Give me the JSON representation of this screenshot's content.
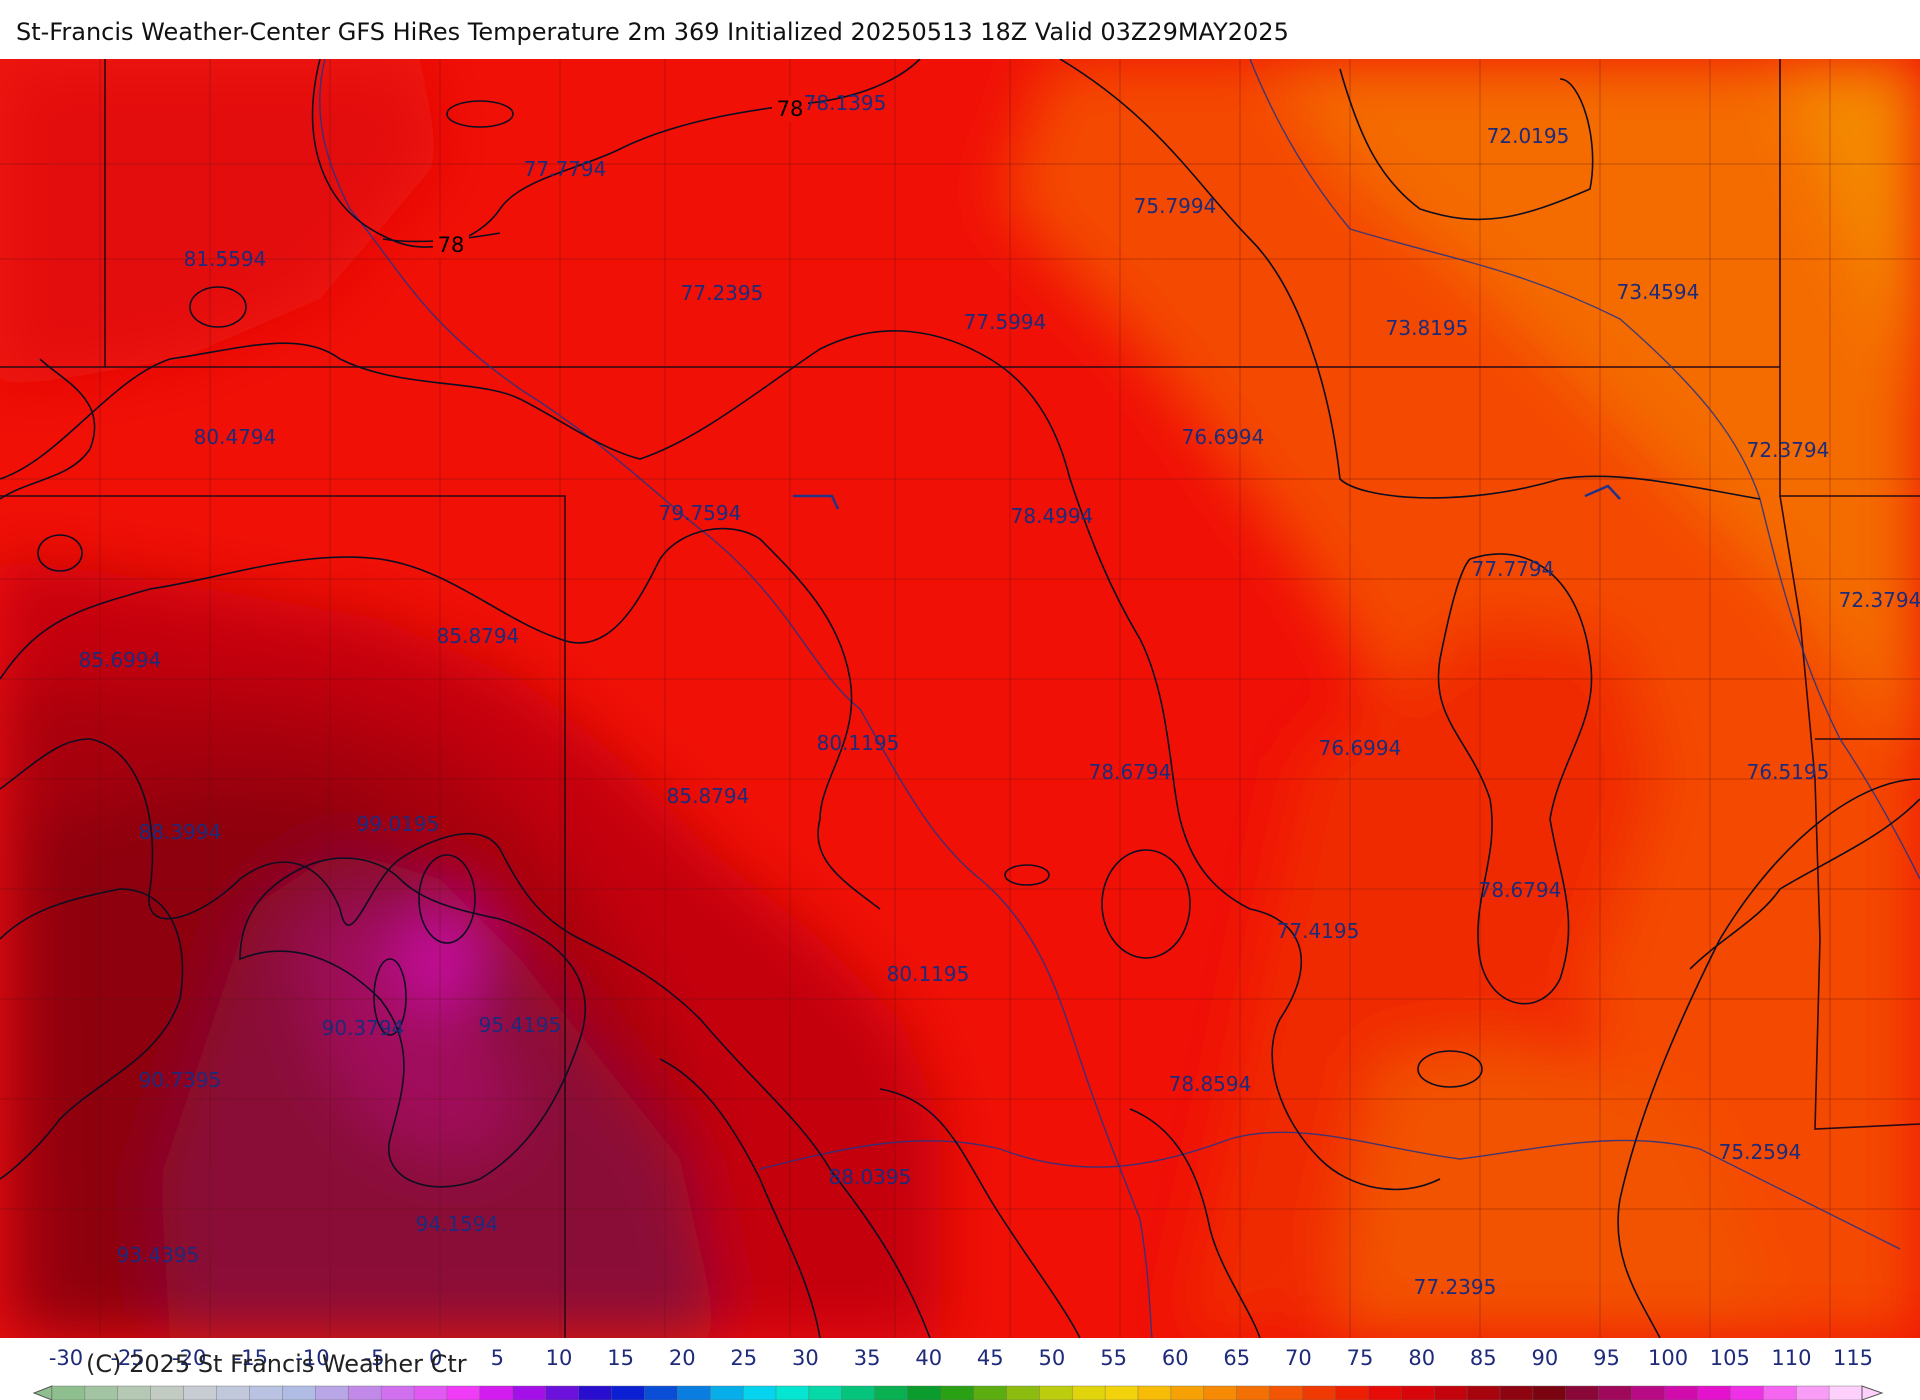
{
  "header": {
    "title": "St-Francis Weather-Center GFS HiRes Temperature 2m  369 Initialized 20250513 18Z Valid 03Z29MAY2025"
  },
  "map": {
    "field": "Temperature 2m",
    "contour_labels": [
      "78",
      "78"
    ],
    "point_values": [
      "78.1395",
      "77.7794",
      "75.7994",
      "72.0195",
      "81.5594",
      "77.2395",
      "77.5994",
      "73.8195",
      "73.4594",
      "80.4794",
      "76.6994",
      "72.3794",
      "79.7594",
      "78.4994",
      "77.7794",
      "72.3794",
      "85.6994",
      "85.8794",
      "80.1195",
      "78.6794",
      "76.6994",
      "76.5195",
      "88.3994",
      "99.0195",
      "85.8794",
      "78.6794",
      "77.4195",
      "80.1195",
      "90.3794",
      "95.4195",
      "90.7395",
      "78.8594",
      "75.2594",
      "88.0395",
      "94.1594",
      "93.4395",
      "77.2395"
    ]
  },
  "colorbar": {
    "ticks": [
      "-30",
      "-25",
      "-20",
      "-15",
      "-10",
      "-5",
      "0",
      "5",
      "10",
      "15",
      "20",
      "25",
      "30",
      "35",
      "40",
      "45",
      "50",
      "55",
      "60",
      "65",
      "70",
      "75",
      "80",
      "85",
      "90",
      "95",
      "100",
      "105",
      "110",
      "115"
    ],
    "colors": [
      "#8fbf8f",
      "#a3c4a3",
      "#b4c8b4",
      "#c2cbc2",
      "#c8cdd4",
      "#c2c8dc",
      "#b9c2e0",
      "#b0bce3",
      "#b9a6e6",
      "#c28ae8",
      "#d070ee",
      "#e258f2",
      "#f03cf6",
      "#d21cf0",
      "#a310e8",
      "#6c10dc",
      "#2a0ed0",
      "#0b20d2",
      "#0a4ed8",
      "#0a7ee0",
      "#08aeea",
      "#06d4ee",
      "#05e6d2",
      "#06d8a8",
      "#07c47c",
      "#08b052",
      "#0a9c2c",
      "#2aa014",
      "#5cae10",
      "#8cbc10",
      "#bccc0e",
      "#e0d40c",
      "#f2d20a",
      "#f6bc08",
      "#f6a206",
      "#f68a04",
      "#f47004",
      "#f25604",
      "#f03a04",
      "#ee2004",
      "#e80c08",
      "#d8060a",
      "#c4040c",
      "#a8040e",
      "#8e0410",
      "#7a0410",
      "#8a0838",
      "#a0085c",
      "#b80a84",
      "#d00cac",
      "#e412cc",
      "#f030e6",
      "#f466f0",
      "#f89cf6",
      "#fcd0fa"
    ]
  },
  "footer": {
    "copyright": "(C) 2025 St Francis Weather Ctr"
  }
}
